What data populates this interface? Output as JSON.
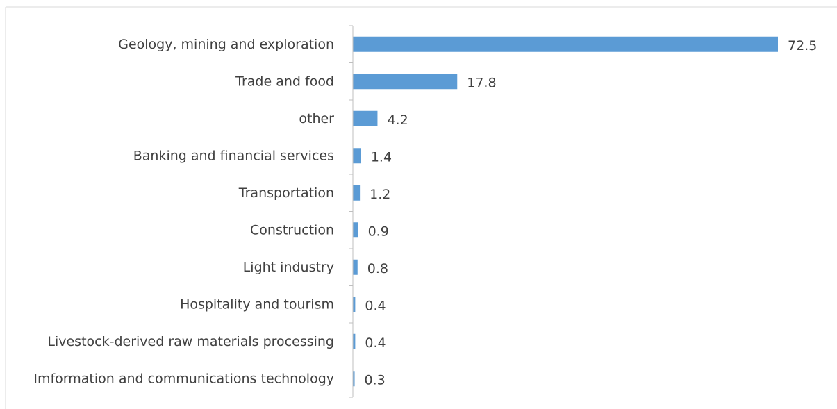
{
  "chart_data": {
    "type": "bar",
    "orientation": "horizontal",
    "categories": [
      "Geology, mining and exploration",
      "Trade and food",
      "other",
      "Banking and financial services",
      "Transportation",
      "Construction",
      "Light industry",
      "Hospitality and tourism",
      "Livestock-derived raw materials processing",
      "Imformation and communications technology"
    ],
    "values": [
      72.5,
      17.8,
      4.2,
      1.4,
      1.2,
      0.9,
      0.8,
      0.4,
      0.4,
      0.3
    ],
    "value_labels": [
      "72.5",
      "17.8",
      "4.2",
      "1.4",
      "1.2",
      "0.9",
      "0.8",
      "0.4",
      "0.4",
      "0.3"
    ],
    "bar_color": "#5b9bd5",
    "xlim": [
      0,
      80
    ],
    "grid": false,
    "legend": "none"
  }
}
